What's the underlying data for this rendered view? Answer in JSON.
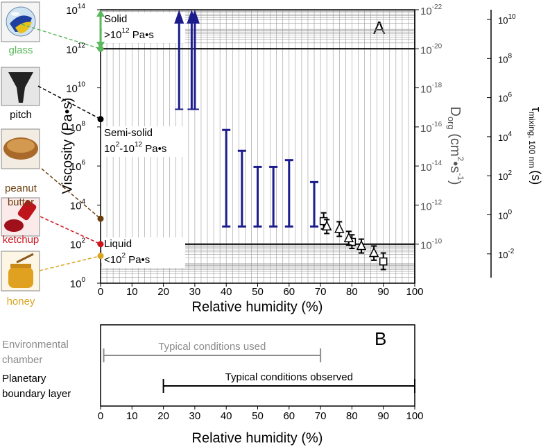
{
  "chart_data": [
    {
      "type": "range",
      "panel_label": "A",
      "xlabel": "Relative humidity (%)",
      "ylabel": "Viscosity (Pa•s)",
      "y2label": [
        "D",
        "org",
        " (cm",
        "2",
        "•s",
        "-1",
        ")"
      ],
      "y3label": [
        "τ",
        "mixing, 100 nm",
        "(s)"
      ],
      "xlim": [
        0,
        100
      ],
      "xticks": [
        0,
        10,
        20,
        30,
        40,
        50,
        60,
        70,
        80,
        90,
        100
      ],
      "yscale": "log",
      "ylim": [
        1,
        100000000000000.0
      ],
      "yticks": [
        {
          "value": 1,
          "label": "10",
          "exponent": "0"
        },
        {
          "value": 100,
          "label": "10",
          "exponent": "2"
        },
        {
          "value": 10000,
          "label": "10",
          "exponent": "4"
        },
        {
          "value": 1000000,
          "label": "10",
          "exponent": "6"
        },
        {
          "value": 100000000,
          "label": "10",
          "exponent": "8"
        },
        {
          "value": 10000000000,
          "label": "10",
          "exponent": "10"
        },
        {
          "value": 1000000000000,
          "label": "10",
          "exponent": "12"
        },
        {
          "value": 100000000000000.0,
          "label": "10",
          "exponent": "14"
        }
      ],
      "y2lim": [
        1e-08,
        1e-22
      ],
      "y2ticks": [
        {
          "value": 1e-22,
          "label": "10",
          "exponent": "-22"
        },
        {
          "value": 1e-20,
          "label": "10",
          "exponent": "-20"
        },
        {
          "value": 1e-18,
          "label": "10",
          "exponent": "-18"
        },
        {
          "value": 1e-16,
          "label": "10",
          "exponent": "-16"
        },
        {
          "value": 1e-14,
          "label": "10",
          "exponent": "-14"
        },
        {
          "value": 1e-12,
          "label": "10",
          "exponent": "-12"
        },
        {
          "value": 1e-10,
          "label": "10",
          "exponent": "-10"
        }
      ],
      "y3lim": [
        0.000316,
        31600000000
      ],
      "y3ticks": [
        {
          "value": 0.01,
          "label": "10",
          "exponent": "-2"
        },
        {
          "value": 1,
          "label": "10",
          "exponent": "0"
        },
        {
          "value": 100,
          "label": "10",
          "exponent": "2"
        },
        {
          "value": 10000,
          "label": "10",
          "exponent": "4"
        },
        {
          "value": 1000000,
          "label": "10",
          "exponent": "6"
        },
        {
          "value": 100000000,
          "label": "10",
          "exponent": "8"
        },
        {
          "value": 10000000000,
          "label": "10",
          "exponent": "10"
        }
      ],
      "grid": true,
      "boundaries": [
        1000000000000,
        100
      ],
      "regions": [
        {
          "label": "Solid",
          "detail": [
            ">10",
            "12",
            " Pa•s"
          ]
        },
        {
          "label": "Semi-solid",
          "detail": [
            "10",
            "2",
            "-10",
            "12",
            " Pa•s"
          ]
        },
        {
          "label": "Liquid",
          "detail": [
            "<10",
            "2",
            " Pa•s"
          ]
        }
      ],
      "series": [
        {
          "type": "lower-limit",
          "color": "#1c1c8c",
          "x": [
            25,
            29,
            30
          ],
          "values": [
            800000000,
            800000000,
            800000000
          ]
        },
        {
          "type": "range",
          "color": "#1c1c8c",
          "x": [
            40,
            45,
            50,
            55,
            60,
            68
          ],
          "low": [
            800,
            800,
            800,
            800,
            800,
            800
          ],
          "high": [
            70000000,
            6000000,
            900000,
            900000,
            2000000,
            150000
          ]
        },
        {
          "type": "square",
          "color": "#000000",
          "x": [
            71,
            80,
            90
          ],
          "values": [
            1500,
            130,
            13
          ],
          "low": [
            600,
            60,
            5
          ],
          "high": [
            4000,
            300,
            35
          ]
        },
        {
          "type": "triangle",
          "color": "#000000",
          "x": [
            72,
            76,
            79,
            83,
            87
          ],
          "values": [
            800,
            600,
            200,
            80,
            35
          ],
          "low": [
            350,
            250,
            90,
            35,
            15
          ],
          "high": [
            1800,
            1400,
            450,
            180,
            80
          ]
        }
      ],
      "materials": [
        {
          "label": [
            "glass"
          ],
          "value": 1000000000000,
          "high": 100000000000000.0,
          "color": "#5cb85c"
        },
        {
          "label": [
            "pitch"
          ],
          "value": 250000000,
          "color": "#000000"
        },
        {
          "label": [
            "peanut",
            "butter"
          ],
          "value": 2000,
          "color": "#6b3f10"
        },
        {
          "label": [
            "ketchup"
          ],
          "value": 100,
          "color": "#d0141c"
        },
        {
          "label": [
            "honey"
          ],
          "value": 25,
          "color": "#d9a520"
        }
      ]
    },
    {
      "type": "hrange",
      "panel_label": "B",
      "xlabel": "Relative humidity (%)",
      "xlim": [
        0,
        100
      ],
      "xticks": [
        0,
        10,
        20,
        30,
        40,
        50,
        60,
        70,
        80,
        90,
        100
      ],
      "series": [
        {
          "name": [
            "Environmental",
            "chamber"
          ],
          "label": "Typical conditions used",
          "low": 1,
          "high": 70,
          "color": "#8c8c8c"
        },
        {
          "name": [
            "Planetary",
            "boundary layer"
          ],
          "label": "Typical conditions observed",
          "low": 20,
          "high": 100,
          "color": "#000000"
        }
      ]
    }
  ]
}
